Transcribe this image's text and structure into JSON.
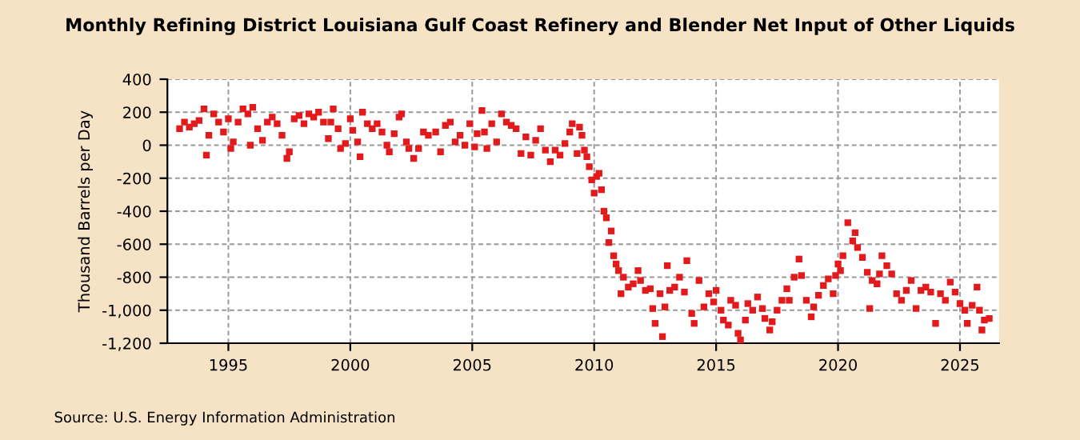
{
  "chart_data": {
    "type": "scatter",
    "title": "Monthly Refining District Louisiana Gulf Coast Refinery and Blender Net Input of Other Liquids",
    "ylabel": "Thousand Barrels per Day",
    "annotations": [
      "Source: U.S. Energy Information Administration"
    ],
    "marker": "square",
    "grid": true,
    "xlim": [
      1992.5,
      2026.6
    ],
    "xticks": [
      1995,
      2000,
      2005,
      2010,
      2015,
      2020,
      2025
    ],
    "ylim": [
      -1200,
      400
    ],
    "yticks": [
      {
        "value": -1200,
        "label": "-1,200"
      },
      {
        "value": -1000,
        "label": "-1,000"
      },
      -800,
      -600,
      -400,
      -200,
      0,
      200,
      400
    ],
    "series": [
      {
        "color": "#e31a1c",
        "x": [
          1993.0,
          1993.2,
          1993.4,
          1993.6,
          1993.8,
          1994.0,
          1994.1,
          1994.2,
          1994.4,
          1994.6,
          1994.8,
          1995.0,
          1995.1,
          1995.2,
          1995.4,
          1995.6,
          1995.8,
          1995.9,
          1996.0,
          1996.2,
          1996.4,
          1996.6,
          1996.8,
          1997.0,
          1997.2,
          1997.4,
          1997.5,
          1997.7,
          1997.9,
          1998.1,
          1998.3,
          1998.5,
          1998.7,
          1998.9,
          1999.1,
          1999.2,
          1999.3,
          1999.5,
          1999.6,
          1999.8,
          2000.0,
          2000.1,
          2000.3,
          2000.4,
          2000.5,
          2000.7,
          2000.9,
          2001.1,
          2001.3,
          2001.5,
          2001.6,
          2001.8,
          2002.0,
          2002.1,
          2002.3,
          2002.4,
          2002.6,
          2002.8,
          2003.0,
          2003.2,
          2003.5,
          2003.7,
          2003.9,
          2004.1,
          2004.3,
          2004.5,
          2004.7,
          2004.9,
          2005.1,
          2005.2,
          2005.4,
          2005.5,
          2005.6,
          2005.8,
          2006.0,
          2006.2,
          2006.4,
          2006.6,
          2006.8,
          2007.0,
          2007.2,
          2007.4,
          2007.6,
          2007.8,
          2008.0,
          2008.2,
          2008.4,
          2008.6,
          2008.8,
          2009.0,
          2009.1,
          2009.3,
          2009.4,
          2009.5,
          2009.6,
          2009.7,
          2009.8,
          2009.9,
          2010.0,
          2010.1,
          2010.2,
          2010.3,
          2010.4,
          2010.5,
          2010.6,
          2010.7,
          2010.8,
          2010.9,
          2011.0,
          2011.1,
          2011.2,
          2011.4,
          2011.6,
          2011.8,
          2011.9,
          2012.1,
          2012.3,
          2012.4,
          2012.5,
          2012.7,
          2012.8,
          2012.9,
          2013.0,
          2013.1,
          2013.3,
          2013.5,
          2013.7,
          2013.8,
          2014.0,
          2014.1,
          2014.3,
          2014.5,
          2014.7,
          2014.9,
          2015.0,
          2015.2,
          2015.3,
          2015.5,
          2015.6,
          2015.8,
          2015.9,
          2016.0,
          2016.2,
          2016.3,
          2016.5,
          2016.7,
          2016.9,
          2017.0,
          2017.2,
          2017.3,
          2017.5,
          2017.7,
          2017.9,
          2018.0,
          2018.2,
          2018.4,
          2018.5,
          2018.7,
          2018.9,
          2019.0,
          2019.2,
          2019.4,
          2019.6,
          2019.8,
          2019.9,
          2020.0,
          2020.1,
          2020.2,
          2020.4,
          2020.6,
          2020.7,
          2020.8,
          2021.0,
          2021.2,
          2021.3,
          2021.4,
          2021.6,
          2021.7,
          2021.8,
          2022.0,
          2022.2,
          2022.4,
          2022.6,
          2022.8,
          2023.0,
          2023.2,
          2023.4,
          2023.6,
          2023.8,
          2024.0,
          2024.2,
          2024.4,
          2024.6,
          2024.8,
          2025.0,
          2025.2,
          2025.3,
          2025.5,
          2025.7,
          2025.8,
          2025.9,
          2026.0,
          2026.2
        ],
        "values": [
          100,
          140,
          110,
          130,
          150,
          220,
          -60,
          60,
          190,
          140,
          80,
          160,
          -20,
          20,
          140,
          220,
          190,
          0,
          230,
          100,
          30,
          140,
          170,
          130,
          60,
          -80,
          -40,
          160,
          180,
          130,
          190,
          170,
          200,
          140,
          40,
          140,
          220,
          100,
          -20,
          10,
          160,
          90,
          20,
          -70,
          200,
          130,
          100,
          130,
          80,
          0,
          -40,
          70,
          170,
          190,
          20,
          -20,
          -80,
          -20,
          80,
          60,
          80,
          -40,
          120,
          140,
          20,
          60,
          0,
          130,
          -10,
          70,
          210,
          80,
          -20,
          130,
          20,
          190,
          140,
          120,
          100,
          -50,
          50,
          -60,
          30,
          100,
          -30,
          -100,
          -30,
          -60,
          10,
          80,
          130,
          -50,
          110,
          60,
          -30,
          -70,
          -130,
          -210,
          -290,
          -190,
          -170,
          -270,
          -400,
          -440,
          -590,
          -520,
          -670,
          -720,
          -760,
          -900,
          -800,
          -860,
          -840,
          -760,
          -820,
          -880,
          -870,
          -990,
          -1080,
          -900,
          -1160,
          -980,
          -730,
          -880,
          -860,
          -800,
          -890,
          -700,
          -1020,
          -1080,
          -820,
          -980,
          -900,
          -950,
          -880,
          -1000,
          -1060,
          -1090,
          -940,
          -970,
          -1140,
          -1180,
          -1060,
          -960,
          -1000,
          -920,
          -990,
          -1050,
          -1120,
          -1070,
          -1000,
          -940,
          -870,
          -940,
          -800,
          -690,
          -790,
          -940,
          -1040,
          -980,
          -910,
          -850,
          -810,
          -900,
          -790,
          -720,
          -760,
          -670,
          -470,
          -580,
          -530,
          -620,
          -680,
          -770,
          -990,
          -820,
          -840,
          -780,
          -670,
          -730,
          -780,
          -900,
          -940,
          -880,
          -820,
          -990,
          -880,
          -860,
          -890,
          -1080,
          -900,
          -940,
          -830,
          -890,
          -960,
          -1000,
          -1080,
          -970,
          -860,
          -1000,
          -1120,
          -1060,
          -1050
        ]
      }
    ]
  }
}
